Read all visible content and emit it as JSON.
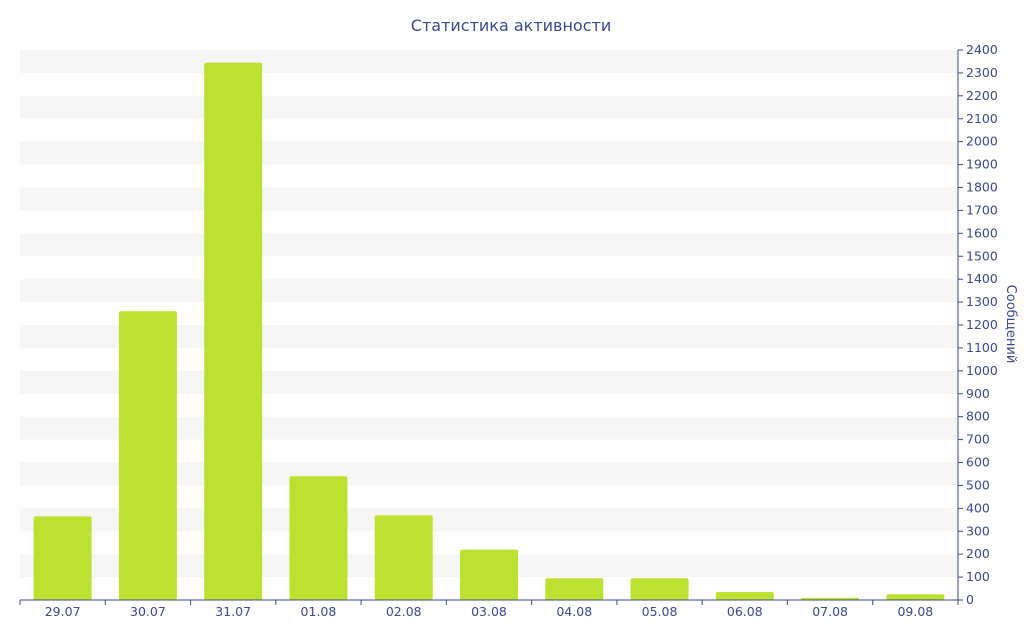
{
  "chart_data": {
    "type": "bar",
    "title": "Статистика активности",
    "xlabel": "",
    "ylabel": "Сообщений",
    "categories": [
      "29.07",
      "30.07",
      "31.07",
      "01.08",
      "02.08",
      "03.08",
      "04.08",
      "05.08",
      "06.08",
      "07.08",
      "09.08"
    ],
    "values": [
      365,
      1260,
      2345,
      540,
      370,
      220,
      95,
      95,
      35,
      10,
      25
    ],
    "ylim": [
      0,
      2400
    ],
    "ytick_step": 100,
    "yaxis_position": "right",
    "grid": "alternating horizontal bands",
    "legend": "none",
    "colors": {
      "bar": "#bce130",
      "band": "#f6f6f6",
      "axis": "#3b4a8a",
      "text": "#3b4a8a"
    }
  }
}
